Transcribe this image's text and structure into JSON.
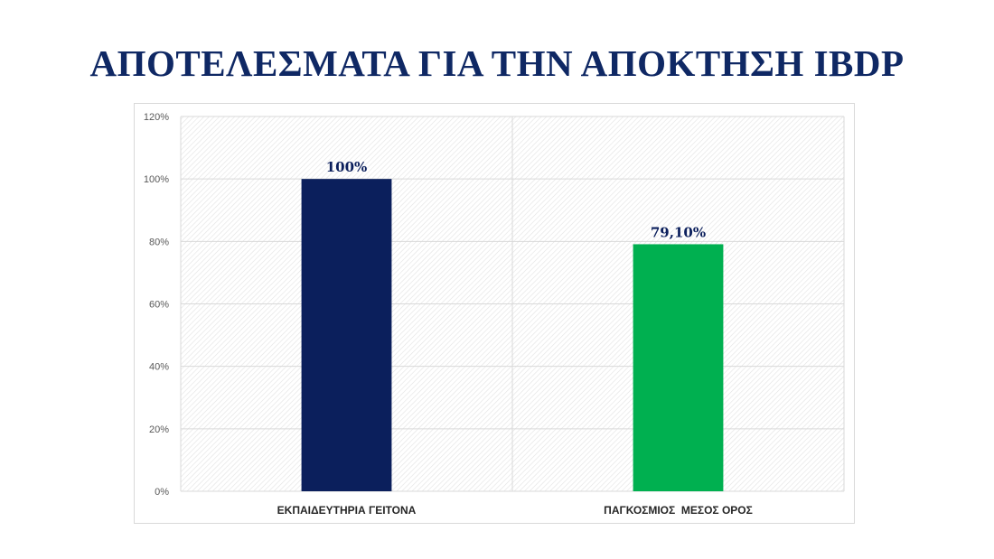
{
  "slide": {
    "title": "ΑΠΟΤΕΛΕΣΜΑΤΑ ΓΙΑ ΤΗΝ ΑΠΟΚΤΗΣΗ IBDP"
  },
  "colors": {
    "title": "#0f2864",
    "bar_1": "#0b1f5c",
    "bar_2": "#00b050",
    "label_1": "#0b1f5c",
    "label_2": "#0b1f5c"
  },
  "chart_data": {
    "type": "bar",
    "categories": [
      "ΕΚΠΑΙΔΕΥΤΗΡΙΑ ΓΕΙΤΟΝΑ",
      "ΠΑΓΚΟΣΜΙΟΣ  ΜΕΣΟΣ ΟΡΟΣ"
    ],
    "values": [
      100,
      79.1
    ],
    "data_labels": [
      "100%",
      "79,10%"
    ],
    "bar_colors": [
      "#0b1f5c",
      "#00b050"
    ],
    "ylim": [
      0,
      120
    ],
    "yticks": [
      0,
      20,
      40,
      60,
      80,
      100,
      120
    ],
    "ytick_labels": [
      "0%",
      "20%",
      "40%",
      "60%",
      "80%",
      "100%",
      "120%"
    ],
    "grid": true,
    "background_pattern": "diagonal-hatch",
    "xlabel": "",
    "ylabel": ""
  }
}
